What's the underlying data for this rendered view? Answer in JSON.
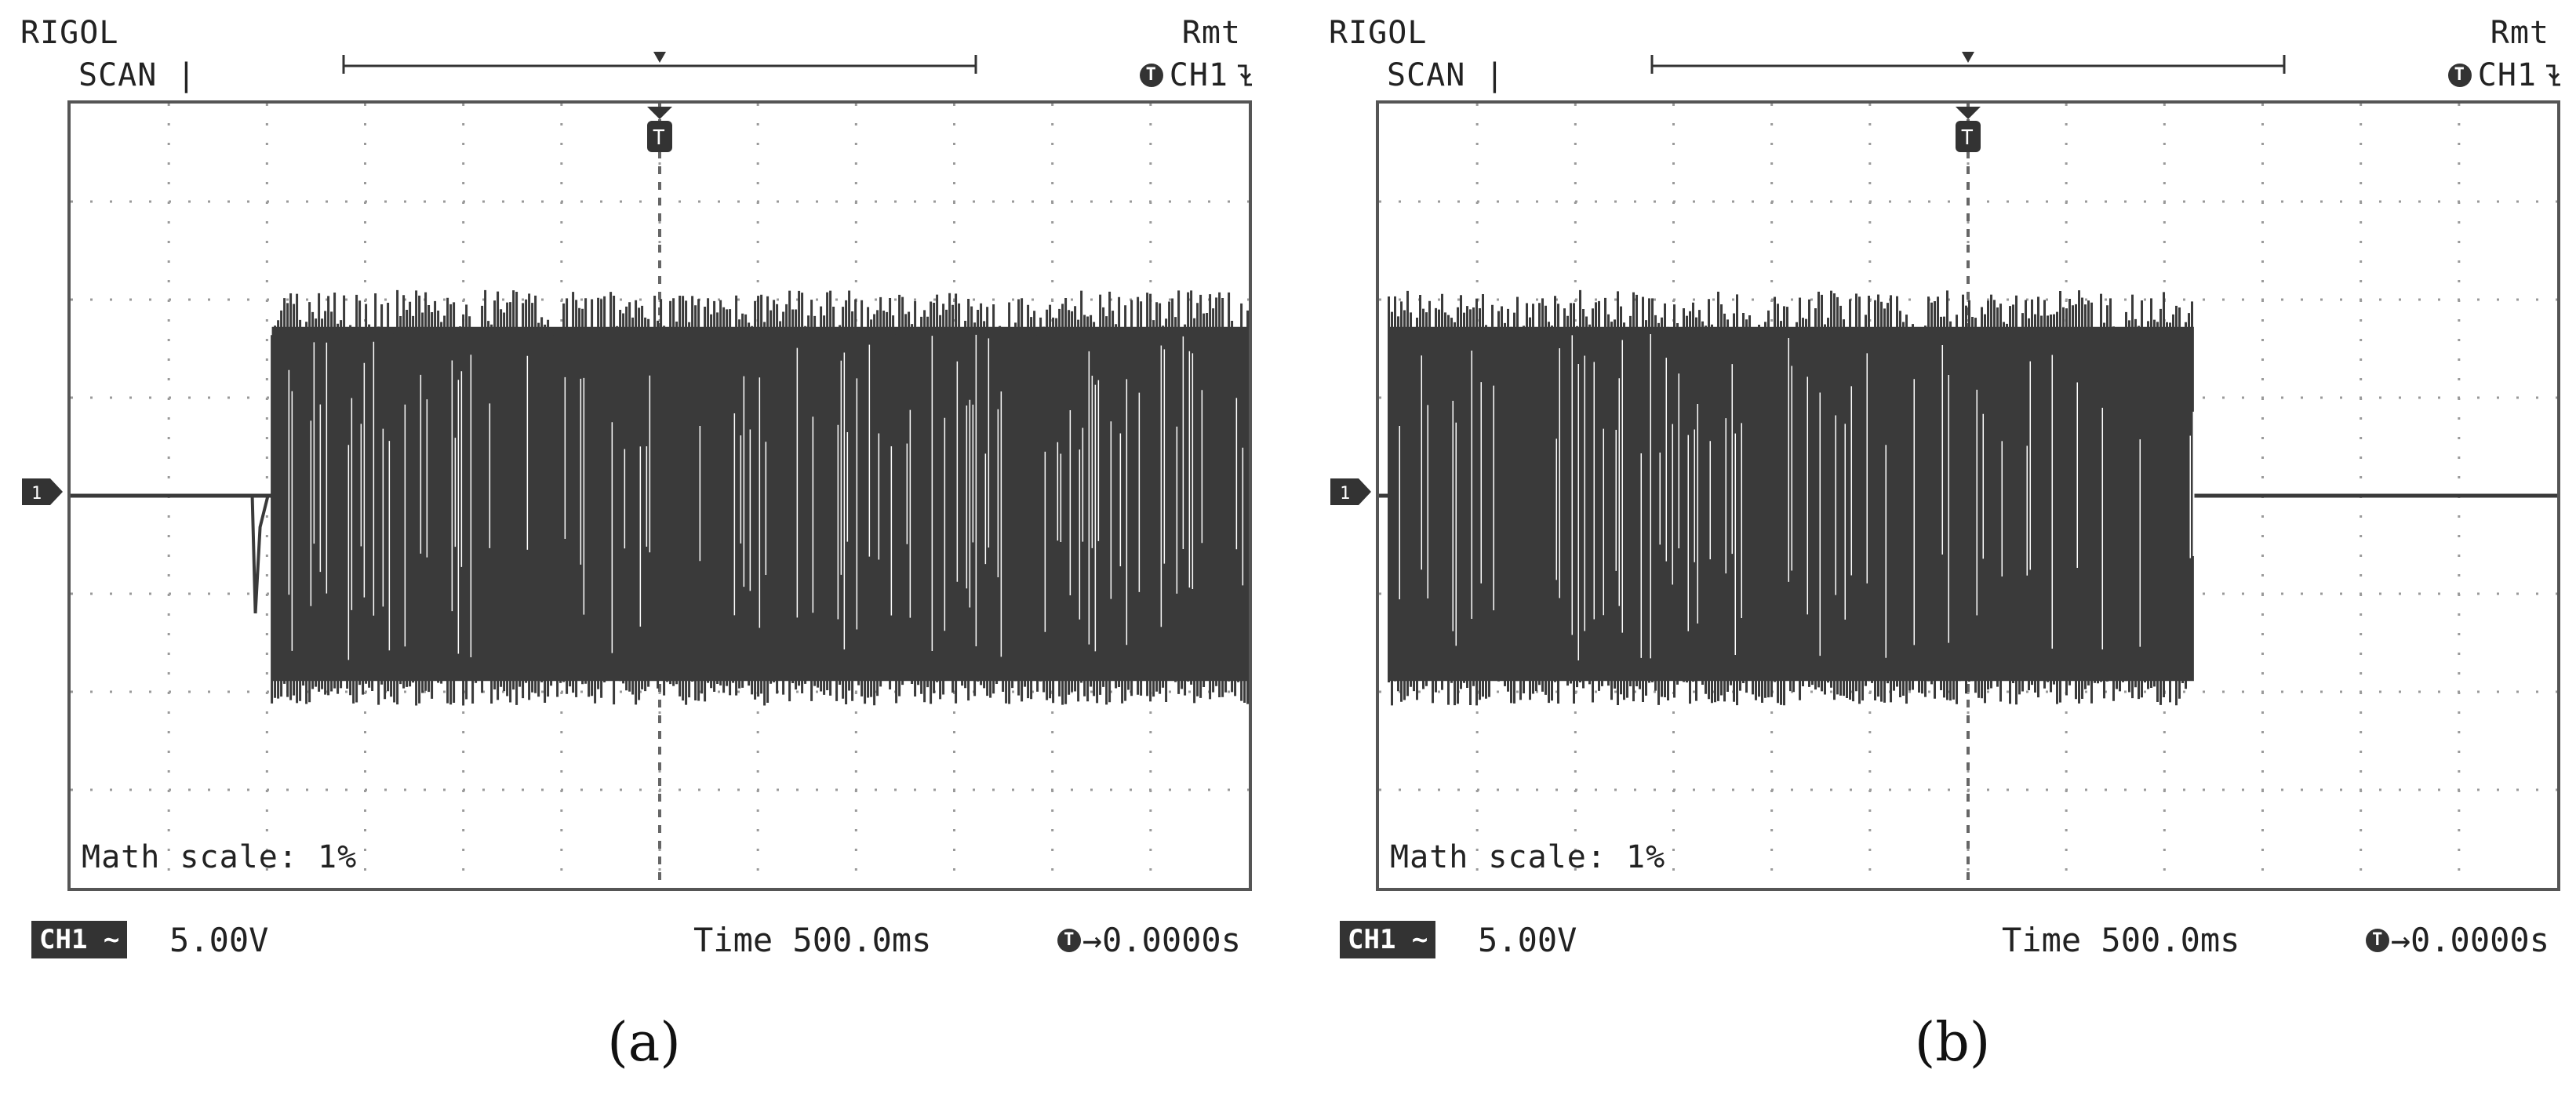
{
  "colors": {
    "trace": "#3a3a3a",
    "grid": "#9a9a9a",
    "border": "#555555",
    "background": "#ffffff"
  },
  "panels": [
    {
      "caption": "(a)",
      "brand": "RIGOL",
      "mode": "SCAN |",
      "remote": "Rmt",
      "trigger_status": "CH1",
      "trigger_icon": "T",
      "trigger_slope_icon": "falling-edge-icon",
      "math_scale": "Math scale: 1%",
      "channel_badge": "CH1",
      "channel_coupling_icon": "ac-coupling-icon",
      "volts_per_div": "5.00V",
      "timebase": "Time 500.0ms",
      "trigger_offset_label": "→0.0000s",
      "trace": {
        "active_from_div": 2.05,
        "active_to_div": 12.0,
        "amplitude_div": 2.1,
        "transient_div": 1.85
      }
    },
    {
      "caption": "(b)",
      "brand": "RIGOL",
      "mode": "SCAN |",
      "remote": "Rmt",
      "trigger_status": "CH1",
      "trigger_icon": "T",
      "trigger_slope_icon": "falling-edge-icon",
      "math_scale": "Math scale: 1%",
      "channel_badge": "CH1",
      "channel_coupling_icon": "ac-coupling-icon",
      "volts_per_div": "5.00V",
      "timebase": "Time 500.0ms",
      "trigger_offset_label": "→0.0000s",
      "trace": {
        "active_from_div": 0.1,
        "active_to_div": 8.3,
        "amplitude_div": 2.1,
        "transient_div": 0
      }
    }
  ]
}
